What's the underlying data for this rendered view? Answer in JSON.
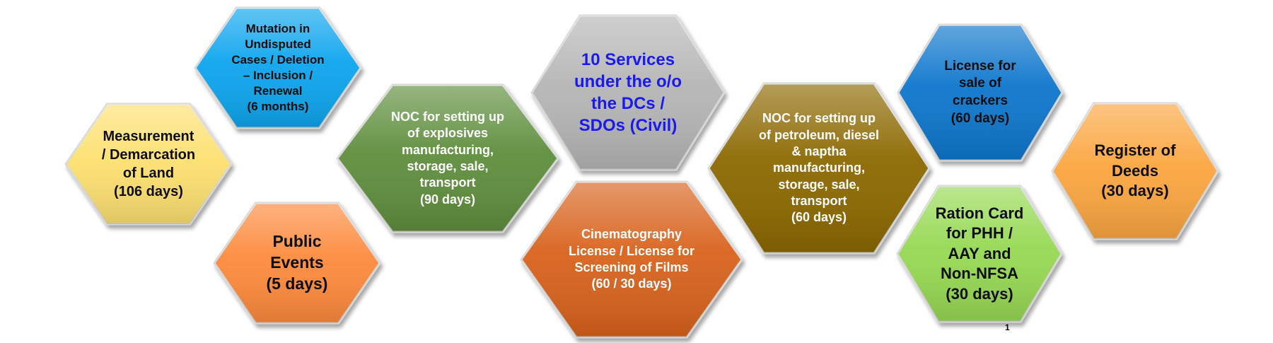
{
  "hexagons": [
    {
      "id": "mutation",
      "text": "Mutation in\nUndisputed\nCases / Deletion\n– Inclusion  /\nRenewal\n(6 months)",
      "fill": "#0aa5ee",
      "text_color": "#0d0d0d"
    },
    {
      "id": "measurement",
      "text": "Measurement\n/ Demarcation\nof Land\n(106 days)",
      "fill": "#fde06f",
      "text_color": "#0d0d0d"
    },
    {
      "id": "public-events",
      "text": "Public\nEvents\n(5 days)",
      "fill": "#fd8a3d",
      "text_color": "#0d0d0d"
    },
    {
      "id": "noc-explosives",
      "text": "NOC for setting up\nof explosives\nmanufacturing,\nstorage, sale,\ntransport\n(90 days)",
      "fill": "#5e8e3c",
      "text_color": "#ffffff"
    },
    {
      "id": "ten-services",
      "text": "10 Services\nunder the o/o\nthe DCs  /\nSDOs (Civil)",
      "fill": "#b5b5b5",
      "text_color": "#1a1aee"
    },
    {
      "id": "cinematography",
      "text": "Cinematography\nLicense / License for\nScreening of Films\n(60 / 30 days)",
      "fill": "#d8621d",
      "text_color": "#ffffff"
    },
    {
      "id": "noc-petroleum",
      "text": "NOC for setting up\nof petroleum, diesel\n& naptha\nmanufacturing,\nstorage, sale,\ntransport\n(60 days)",
      "fill": "#8c6806",
      "text_color": "#ffffff"
    },
    {
      "id": "crackers",
      "text": "License for\nsale of\ncrackers\n(60 days)",
      "fill": "#0f76cc",
      "text_color": "#0d0d0d"
    },
    {
      "id": "ration-card",
      "text": "Ration Card\nfor PHH /\nAAY and\nNon-NFSA\n(30 days)",
      "fill": "#96d952",
      "text_color": "#0d0d0d"
    },
    {
      "id": "register-deeds",
      "text": "Register of\nDeeds\n(30 days)",
      "fill": "#fba63f",
      "text_color": "#0d0d0d"
    }
  ],
  "page_number": "1"
}
